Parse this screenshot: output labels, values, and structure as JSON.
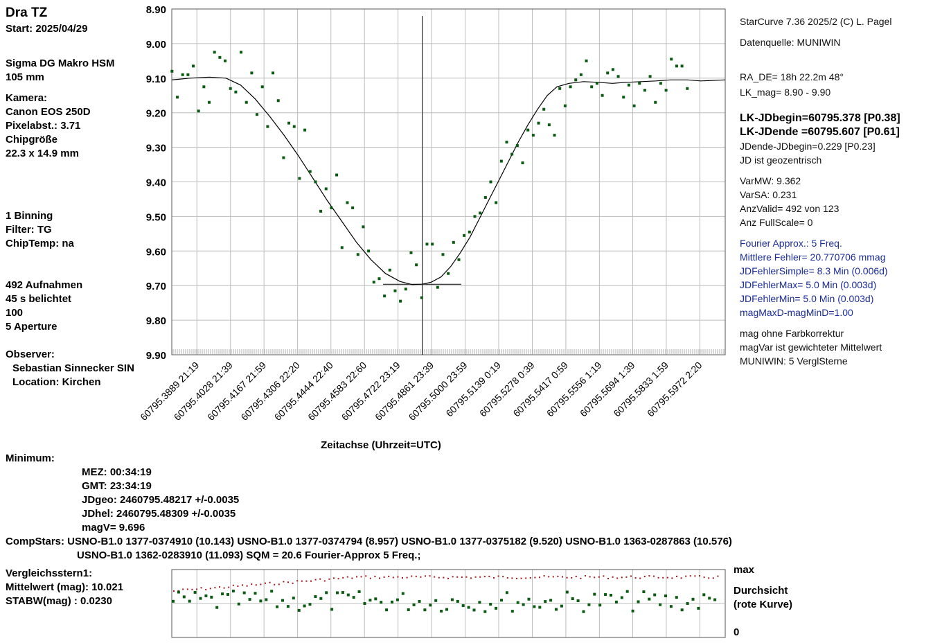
{
  "left_panel": {
    "object": "Dra TZ",
    "start": "Start: 2025/04/29",
    "lens": "Sigma DG Makro HSM",
    "focal": "105 mm",
    "camera_label": "Kamera:",
    "camera": "Canon EOS 250D",
    "pixel": "Pixelabst.: 3.71",
    "chip_label": "Chipgröße",
    "chip": "22.3 x 14.9 mm",
    "binning": "1 Binning",
    "filter": "Filter: TG",
    "chiptemp": "ChipTemp: na",
    "frames": "492 Aufnahmen",
    "exposure": "45 s belichtet",
    "iso": "100",
    "aperture": "5 Aperture",
    "observer_label": "Observer:",
    "observer": "Sebastian Sinnecker SIN",
    "location": "Location: Kirchen"
  },
  "right_panel": {
    "software": "StarCurve 7.36   2025/2  (C) L. Pagel",
    "source": "Datenquelle: MUNIWIN",
    "ra_de": "RA_DE= 18h 22.2m    48°",
    "lk_mag": "LK_mag= 8.90 -  9.90",
    "jd_begin": "LK-JDbegin=60795.378 [P0.38]",
    "jd_end": "LK-JDende =60795.607 [P0.61]",
    "jd_diff": "JDende-JDbegin=0.229 [P0.23]",
    "geo": "JD ist geozentrisch",
    "var_mw": "VarMW: 9.362",
    "var_sa": "VarSA: 0.231",
    "anz_valid": "AnzValid= 492 von 123",
    "anz_full": "Anz FullScale= 0",
    "fourier": "Fourier Approx.: 5 Freq.",
    "mittlere": "Mittlere Fehler= 20.770706 mmag",
    "jdf_simple": "JDFehlerSimple=   8.3 Min (0.006d)",
    "jdf_max": "JDFehlerMax=    5.0 Min (0.003d)",
    "jdf_min": "JDFehlerMin=    5.0 Min (0.003d)",
    "magmax": "magMaxD-magMinD=1.00",
    "farb": "mag ohne Farbkorrektur",
    "magvar": "magVar ist gewichteter Mittelwert",
    "muniwin": "MUNIWIN: 5 VerglSterne"
  },
  "minimum": {
    "label": "Minimum:",
    "mez": "MEZ:   00:34:19",
    "gmt": "GMT:   23:34:19",
    "jdgeo": "JDgeo: 2460795.48217   +/-0.0035",
    "jdhel": "JDhel: 2460795.48309  +/-0.0035",
    "magv": "magV=       9.696"
  },
  "compstars": {
    "line1": "CompStars: USNO-B1.0 1377-0374910 (10.143) USNO-B1.0 1377-0374794 (8.957) USNO-B1.0 1377-0375182 (9.520) USNO-B1.0 1363-0287863 (10.576)",
    "line2": "USNO-B1.0 1362-0283910 (11.093)     SQM = 20.6 Fourier-Approx 5 Freq.;"
  },
  "comparison": {
    "label": "Vergleichsstern1:",
    "mean": "Mittelwert (mag): 10.021",
    "stdev": "STABW(mag)   :  0.0230",
    "max_label": "max",
    "durchsicht": "Durchsicht",
    "rote": "(rote Kurve)",
    "zero_label": "0"
  },
  "colors": {
    "points": "#0b5a12",
    "curve": "#000000",
    "grid": "#bcbcbc",
    "red": "#a01818"
  },
  "chart_data": {
    "type": "scatter",
    "xlabel": "Zeitachse (Uhrzeit=UTC)",
    "xlim": [
      60795.3785,
      60795.6077
    ],
    "ylim": [
      9.9,
      8.9
    ],
    "y_ticks": [
      "8.90",
      "9.00",
      "9.10",
      "9.20",
      "9.30",
      "9.40",
      "9.50",
      "9.60",
      "9.70",
      "9.80",
      "9.90"
    ],
    "x_tick_labels": [
      "60795.3889  21:19",
      "60795.4028  21:39",
      "60795.4167  21:59",
      "60795.4306  22:20",
      "60795.4444  22:40",
      "60795.4583  22:60",
      "60795.4722  23:19",
      "60795.4861  23:39",
      "60795.5000  23:59",
      "60795.5139   0:19",
      "60795.5278   0:39",
      "60795.5417   0:59",
      "60795.5556   1:19",
      "60795.5694   1:39",
      "60795.5833   1:59",
      "60795.5972   2:20"
    ],
    "min_jd": 60795.4822,
    "min_mag": 9.696,
    "points": [
      [
        60795.3786,
        9.08
      ],
      [
        60795.3808,
        9.155
      ],
      [
        60795.383,
        9.09
      ],
      [
        60795.3852,
        9.09
      ],
      [
        60795.3874,
        9.065
      ],
      [
        60795.3896,
        9.195
      ],
      [
        60795.3918,
        9.125
      ],
      [
        60795.394,
        9.17
      ],
      [
        60795.3962,
        9.025
      ],
      [
        60795.3984,
        9.04
      ],
      [
        60795.4006,
        9.05
      ],
      [
        60795.4028,
        9.13
      ],
      [
        60795.405,
        9.14
      ],
      [
        60795.4072,
        9.025
      ],
      [
        60795.4094,
        9.17
      ],
      [
        60795.4116,
        9.085
      ],
      [
        60795.4138,
        9.205
      ],
      [
        60795.416,
        9.125
      ],
      [
        60795.4182,
        9.24
      ],
      [
        60795.4204,
        9.085
      ],
      [
        60795.4226,
        9.165
      ],
      [
        60795.4248,
        9.33
      ],
      [
        60795.427,
        9.23
      ],
      [
        60795.4292,
        9.24
      ],
      [
        60795.4314,
        9.39
      ],
      [
        60795.4336,
        9.25
      ],
      [
        60795.4358,
        9.37
      ],
      [
        60795.438,
        9.4
      ],
      [
        60795.4402,
        9.485
      ],
      [
        60795.4424,
        9.42
      ],
      [
        60795.4446,
        9.475
      ],
      [
        60795.4468,
        9.38
      ],
      [
        60795.449,
        9.59
      ],
      [
        60795.4512,
        9.46
      ],
      [
        60795.4534,
        9.475
      ],
      [
        60795.4556,
        9.61
      ],
      [
        60795.4578,
        9.53
      ],
      [
        60795.46,
        9.6
      ],
      [
        60795.4622,
        9.69
      ],
      [
        60795.4644,
        9.68
      ],
      [
        60795.4666,
        9.73
      ],
      [
        60795.4688,
        9.655
      ],
      [
        60795.471,
        9.715
      ],
      [
        60795.4732,
        9.745
      ],
      [
        60795.4754,
        9.71
      ],
      [
        60795.4776,
        9.605
      ],
      [
        60795.4798,
        9.64
      ],
      [
        60795.482,
        9.735
      ],
      [
        60795.4842,
        9.58
      ],
      [
        60795.4864,
        9.58
      ],
      [
        60795.4886,
        9.705
      ],
      [
        60795.4908,
        9.61
      ],
      [
        60795.493,
        9.665
      ],
      [
        60795.4952,
        9.575
      ],
      [
        60795.4974,
        9.625
      ],
      [
        60795.4996,
        9.555
      ],
      [
        60795.5018,
        9.545
      ],
      [
        60795.504,
        9.5
      ],
      [
        60795.5062,
        9.49
      ],
      [
        60795.5084,
        9.445
      ],
      [
        60795.5106,
        9.4
      ],
      [
        60795.5128,
        9.46
      ],
      [
        60795.515,
        9.34
      ],
      [
        60795.5172,
        9.285
      ],
      [
        60795.5194,
        9.32
      ],
      [
        60795.5216,
        9.295
      ],
      [
        60795.5238,
        9.345
      ],
      [
        60795.526,
        9.25
      ],
      [
        60795.5282,
        9.265
      ],
      [
        60795.5304,
        9.23
      ],
      [
        60795.5326,
        9.19
      ],
      [
        60795.5348,
        9.235
      ],
      [
        60795.537,
        9.265
      ],
      [
        60795.5392,
        9.13
      ],
      [
        60795.5414,
        9.18
      ],
      [
        60795.5436,
        9.125
      ],
      [
        60795.5458,
        9.105
      ],
      [
        60795.548,
        9.09
      ],
      [
        60795.5502,
        9.05
      ],
      [
        60795.5524,
        9.125
      ],
      [
        60795.5546,
        9.115
      ],
      [
        60795.5568,
        9.15
      ],
      [
        60795.559,
        9.085
      ],
      [
        60795.5612,
        9.075
      ],
      [
        60795.5634,
        9.095
      ],
      [
        60795.5656,
        9.155
      ],
      [
        60795.5678,
        9.12
      ],
      [
        60795.57,
        9.18
      ],
      [
        60795.5722,
        9.115
      ],
      [
        60795.5744,
        9.135
      ],
      [
        60795.5766,
        9.095
      ],
      [
        60795.5788,
        9.17
      ],
      [
        60795.581,
        9.115
      ],
      [
        60795.5832,
        9.135
      ],
      [
        60795.5854,
        9.045
      ],
      [
        60795.5876,
        9.065
      ],
      [
        60795.5898,
        9.065
      ],
      [
        60795.592,
        9.13
      ]
    ],
    "curve": [
      [
        60795.3785,
        9.105
      ],
      [
        60795.386,
        9.1
      ],
      [
        60795.394,
        9.097
      ],
      [
        60795.401,
        9.1
      ],
      [
        60795.407,
        9.12
      ],
      [
        60795.413,
        9.16
      ],
      [
        60795.419,
        9.21
      ],
      [
        60795.425,
        9.265
      ],
      [
        60795.431,
        9.325
      ],
      [
        60795.437,
        9.39
      ],
      [
        60795.443,
        9.455
      ],
      [
        60795.449,
        9.515
      ],
      [
        60795.455,
        9.575
      ],
      [
        60795.461,
        9.625
      ],
      [
        60795.467,
        9.665
      ],
      [
        60795.473,
        9.688
      ],
      [
        60795.478,
        9.697
      ],
      [
        60795.4822,
        9.696
      ],
      [
        60795.486,
        9.69
      ],
      [
        60795.49,
        9.675
      ],
      [
        60795.494,
        9.645
      ],
      [
        60795.498,
        9.605
      ],
      [
        60795.502,
        9.56
      ],
      [
        60795.506,
        9.505
      ],
      [
        60795.51,
        9.45
      ],
      [
        60795.514,
        9.395
      ],
      [
        60795.518,
        9.34
      ],
      [
        60795.522,
        9.285
      ],
      [
        60795.526,
        9.235
      ],
      [
        60795.53,
        9.19
      ],
      [
        60795.534,
        9.15
      ],
      [
        60795.538,
        9.125
      ],
      [
        60795.543,
        9.115
      ],
      [
        60795.549,
        9.11
      ],
      [
        60795.555,
        9.112
      ],
      [
        60795.561,
        9.115
      ],
      [
        60795.567,
        9.112
      ],
      [
        60795.573,
        9.11
      ],
      [
        60795.579,
        9.108
      ],
      [
        60795.585,
        9.105
      ],
      [
        60795.592,
        9.105
      ],
      [
        60795.5976,
        9.108
      ],
      [
        60795.6077,
        9.105
      ]
    ]
  }
}
